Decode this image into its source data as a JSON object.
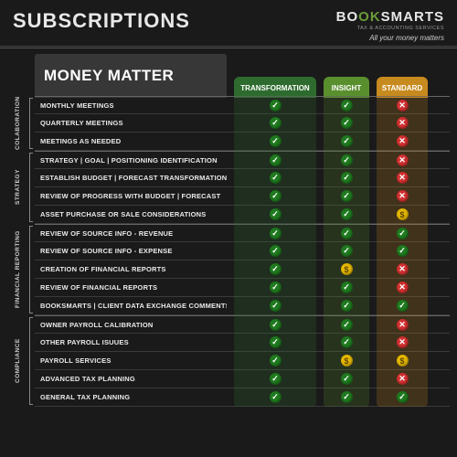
{
  "header": {
    "title": "SUBSCRIPTIONS",
    "logo": {
      "part1": "BO",
      "part2": "OK",
      "part3": "SMARTS"
    },
    "logo_subtitle": "TAX & ACCOUNTING SERVICES",
    "tagline": "All your money matters"
  },
  "table_title": "MONEY MATTER",
  "plans": [
    {
      "name": "TRANSFORMATION",
      "color": "#2e6b2e",
      "col_bg": "rgba(46,107,46,0.25)"
    },
    {
      "name": "INSIGHT",
      "color": "#5a8f2e",
      "col_bg": "rgba(90,143,46,0.22)"
    },
    {
      "name": "STANDARD",
      "color": "#c78a1e",
      "col_bg": "rgba(199,138,30,0.22)"
    }
  ],
  "icons": {
    "check": "✓",
    "x": "✕",
    "dollar": "$"
  },
  "categories": [
    {
      "name": "COLABORATION",
      "rows": [
        {
          "label": "MONTHLY MEETINGS",
          "vals": [
            "check",
            "check",
            "x"
          ]
        },
        {
          "label": "QUARTERLY MEETINGS",
          "vals": [
            "check",
            "check",
            "x"
          ]
        },
        {
          "label": "MEETINGS AS NEEDED",
          "vals": [
            "check",
            "check",
            "x"
          ]
        }
      ]
    },
    {
      "name": "STRATEGY",
      "rows": [
        {
          "label": "STRATEGY | GOAL | POSITIONING IDENTIFICATION",
          "vals": [
            "check",
            "check",
            "x"
          ]
        },
        {
          "label": "ESTABLISH BUDGET | FORECAST TRANSFORMATION PROCESS",
          "vals": [
            "check",
            "check",
            "x"
          ]
        },
        {
          "label": "REVIEW OF PROGRESS WITH BUDGET | FORECAST",
          "vals": [
            "check",
            "check",
            "x"
          ]
        },
        {
          "label": "ASSET PURCHASE OR SALE CONSIDERATIONS",
          "vals": [
            "check",
            "check",
            "dollar"
          ]
        }
      ]
    },
    {
      "name": "FINANCIAL REPORTING",
      "rows": [
        {
          "label": "REVIEW OF SOURCE INFO - REVENUE",
          "vals": [
            "check",
            "check",
            "check"
          ]
        },
        {
          "label": "REVIEW OF SOURCE INFO - EXPENSE",
          "vals": [
            "check",
            "check",
            "check"
          ]
        },
        {
          "label": "CREATION OF FINANCIAL REPORTS",
          "vals": [
            "check",
            "dollar",
            "x"
          ]
        },
        {
          "label": "REVIEW OF FINANCIAL REPORTS",
          "vals": [
            "check",
            "check",
            "x"
          ]
        },
        {
          "label": "BOOKSMARTS | CLIENT DATA EXCHANGE COMMENTS",
          "vals": [
            "check",
            "check",
            "check"
          ]
        }
      ]
    },
    {
      "name": "COMPLIANCE",
      "rows": [
        {
          "label": "OWNER PAYROLL CALIBRATION",
          "vals": [
            "check",
            "check",
            "x"
          ]
        },
        {
          "label": "OTHER PAYROLL ISUUES",
          "vals": [
            "check",
            "check",
            "x"
          ]
        },
        {
          "label": "PAYROLL SERVICES",
          "vals": [
            "check",
            "dollar",
            "dollar"
          ]
        },
        {
          "label": "ADVANCED TAX PLANNING",
          "vals": [
            "check",
            "check",
            "x"
          ]
        },
        {
          "label": "GENERAL TAX PLANNING",
          "vals": [
            "check",
            "check",
            "check"
          ]
        }
      ]
    }
  ]
}
